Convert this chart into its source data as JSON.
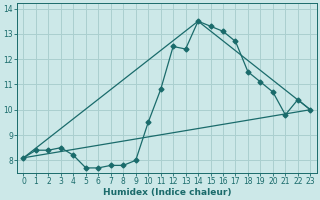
{
  "title": "",
  "xlabel": "Humidex (Indice chaleur)",
  "ylabel": "",
  "bg_color": "#cce8e8",
  "grid_color": "#aacfcf",
  "line_color": "#1a6b6b",
  "xlim": [
    -0.5,
    23.5
  ],
  "ylim": [
    7.5,
    14.2
  ],
  "xticks": [
    0,
    1,
    2,
    3,
    4,
    5,
    6,
    7,
    8,
    9,
    10,
    11,
    12,
    13,
    14,
    15,
    16,
    17,
    18,
    19,
    20,
    21,
    22,
    23
  ],
  "yticks": [
    8,
    9,
    10,
    11,
    12,
    13,
    14
  ],
  "curve1_x": [
    0,
    1,
    2,
    3,
    4,
    5,
    6,
    7,
    8,
    9,
    10,
    11,
    12,
    13,
    14,
    15,
    16,
    17,
    18,
    19,
    20,
    21,
    22,
    23
  ],
  "curve1_y": [
    8.1,
    8.4,
    8.4,
    8.5,
    8.2,
    7.7,
    7.7,
    7.8,
    7.8,
    8.0,
    9.5,
    10.8,
    12.5,
    12.4,
    13.5,
    13.3,
    13.1,
    12.7,
    11.5,
    11.1,
    10.7,
    9.8,
    10.4,
    10.0
  ],
  "curve2_x": [
    0,
    14,
    23
  ],
  "curve2_y": [
    8.1,
    13.5,
    10.0
  ],
  "curve3_x": [
    0,
    23
  ],
  "curve3_y": [
    8.1,
    10.0
  ],
  "xlabel_fontsize": 6.5,
  "tick_fontsize": 5.5
}
